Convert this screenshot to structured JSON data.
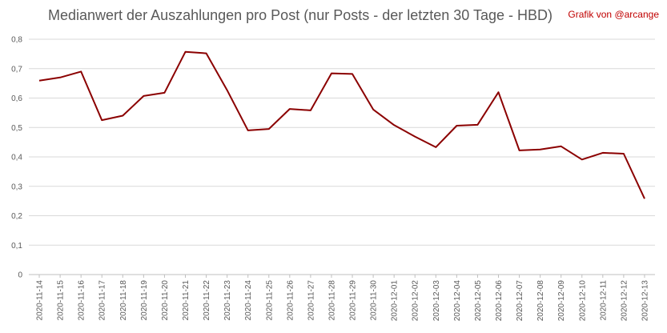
{
  "chart_data": {
    "type": "line",
    "title": "Medianwert der Auszahlungen pro Post (nur Posts - der letzten 30 Tage - HBD)",
    "credit": "Grafik von @arcange",
    "xlabel": "",
    "ylabel": "",
    "ylim": [
      0,
      0.8
    ],
    "yticks": [
      {
        "value": 0,
        "label": "0"
      },
      {
        "value": 0.1,
        "label": "0,1"
      },
      {
        "value": 0.2,
        "label": "0,2"
      },
      {
        "value": 0.3,
        "label": "0,3"
      },
      {
        "value": 0.4,
        "label": "0,4"
      },
      {
        "value": 0.5,
        "label": "0,5"
      },
      {
        "value": 0.6,
        "label": "0,6"
      },
      {
        "value": 0.7,
        "label": "0,7"
      },
      {
        "value": 0.8,
        "label": "0,8"
      }
    ],
    "grid": true,
    "legend": "none",
    "line_color": "#8b0000",
    "categories": [
      "2020-11-14",
      "2020-11-15",
      "2020-11-16",
      "2020-11-17",
      "2020-11-18",
      "2020-11-19",
      "2020-11-20",
      "2020-11-21",
      "2020-11-22",
      "2020-11-23",
      "2020-11-24",
      "2020-11-25",
      "2020-11-26",
      "2020-11-27",
      "2020-11-28",
      "2020-11-29",
      "2020-11-30",
      "2020-12-01",
      "2020-12-02",
      "2020-12-03",
      "2020-12-04",
      "2020-12-05",
      "2020-12-06",
      "2020-12-07",
      "2020-12-08",
      "2020-12-09",
      "2020-12-10",
      "2020-12-11",
      "2020-12-12",
      "2020-12-13"
    ],
    "series": [
      {
        "values": [
          0.659,
          0.67,
          0.69,
          0.525,
          0.54,
          0.607,
          0.618,
          0.757,
          0.752,
          0.627,
          0.49,
          0.495,
          0.563,
          0.558,
          0.684,
          0.682,
          0.561,
          0.508,
          0.469,
          0.433,
          0.506,
          0.509,
          0.62,
          0.422,
          0.425,
          0.436,
          0.391,
          0.414,
          0.411,
          0.258
        ]
      }
    ]
  }
}
